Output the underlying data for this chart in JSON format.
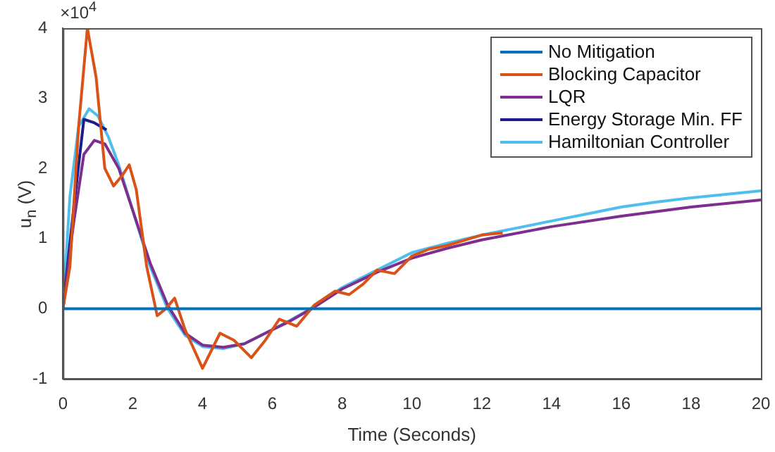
{
  "chart_data": {
    "type": "line",
    "xlabel": "Time (Seconds)",
    "ylabel": "u$_{n}$ (V)",
    "annotations": [
      "×10$^{4}$"
    ],
    "xlim": [
      0,
      20
    ],
    "xticks": [
      0,
      2,
      4,
      6,
      8,
      10,
      12,
      14,
      16,
      18,
      20
    ],
    "ylim": [
      -1,
      4
    ],
    "yticks": [
      -1,
      0,
      1,
      2,
      3,
      4
    ],
    "grid": false,
    "legend": "top right",
    "marker": "none",
    "line_style": "solid",
    "series": [
      {
        "name": "No Mitigation",
        "color": "#0072bd",
        "x": [
          0,
          20
        ],
        "values": [
          0,
          0
        ]
      },
      {
        "name": "Blocking Capacitor",
        "color": "#d95319",
        "x": [
          0,
          0.2,
          0.45,
          0.7,
          0.95,
          1.2,
          1.45,
          1.7,
          1.9,
          2.1,
          2.4,
          2.7,
          2.95,
          3.2,
          3.5,
          4.0,
          4.5,
          4.9,
          5.4,
          5.8,
          6.2,
          6.7,
          7.2,
          7.8,
          8.2,
          8.6,
          9.0,
          9.5,
          10.0,
          10.5,
          11.0,
          12.0,
          12.6
        ],
        "values": [
          0,
          0.6,
          2.6,
          4.0,
          3.3,
          2.0,
          1.75,
          1.9,
          2.05,
          1.7,
          0.6,
          -0.1,
          0.0,
          0.15,
          -0.3,
          -0.85,
          -0.35,
          -0.45,
          -0.7,
          -0.45,
          -0.15,
          -0.25,
          0.05,
          0.25,
          0.2,
          0.35,
          0.55,
          0.5,
          0.75,
          0.85,
          0.9,
          1.05,
          1.08
        ]
      },
      {
        "name": "LQR",
        "color": "#7e2f8e",
        "x": [
          0,
          0.3,
          0.6,
          0.9,
          1.2,
          1.6,
          2.0,
          2.5,
          3.0,
          3.5,
          4.0,
          4.6,
          5.2,
          5.8,
          6.5,
          7.2,
          8.0,
          9.0,
          10.0,
          11.0,
          12.0,
          14.0,
          16.0,
          18.0,
          20.0
        ],
        "values": [
          0,
          1.2,
          2.2,
          2.4,
          2.35,
          2.0,
          1.4,
          0.65,
          0.05,
          -0.35,
          -0.52,
          -0.55,
          -0.5,
          -0.35,
          -0.18,
          0.02,
          0.28,
          0.52,
          0.72,
          0.86,
          0.98,
          1.17,
          1.32,
          1.45,
          1.55
        ]
      },
      {
        "name": "Energy Storage Min. FF",
        "color": "#1c1c8f",
        "x": [
          0,
          0.3,
          0.6,
          0.9,
          1.25
        ],
        "values": [
          0,
          1.4,
          2.7,
          2.65,
          2.55
        ]
      },
      {
        "name": "Hamiltonian Controller",
        "color": "#4dbeee",
        "x": [
          0,
          0.2,
          0.45,
          0.75,
          1.0,
          1.3,
          1.6,
          2.0,
          2.5,
          3.0,
          3.5,
          4.0,
          4.6,
          5.2,
          5.8,
          6.5,
          7.1,
          8.0,
          9.0,
          10.0,
          11.0,
          12.0,
          13.0,
          14.0,
          15.0,
          16.0,
          17.0,
          18.0,
          19.0,
          20.0
        ],
        "values": [
          0,
          1.6,
          2.6,
          2.85,
          2.75,
          2.45,
          2.05,
          1.4,
          0.6,
          0.0,
          -0.38,
          -0.54,
          -0.57,
          -0.5,
          -0.35,
          -0.17,
          0,
          0.3,
          0.55,
          0.8,
          0.93,
          1.05,
          1.15,
          1.25,
          1.35,
          1.45,
          1.52,
          1.58,
          1.63,
          1.68
        ]
      }
    ]
  }
}
